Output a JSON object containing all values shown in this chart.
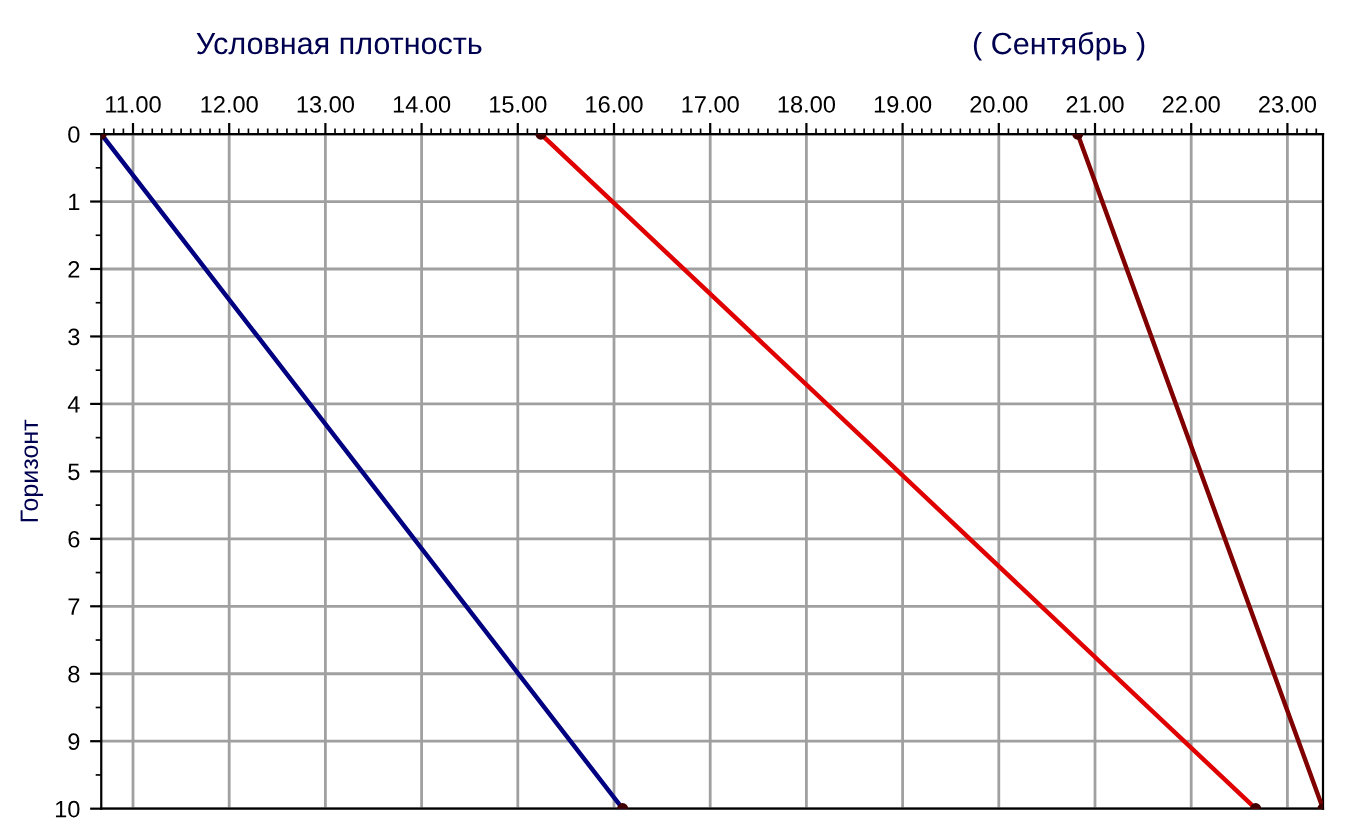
{
  "chart_data": {
    "type": "line",
    "title": "Условная плотность",
    "subtitle": "( Сентябрь )",
    "ylabel": "Горизонт",
    "series": [
      {
        "color": "#000080",
        "x": [
          10.67,
          16.09
        ],
        "values": [
          0,
          10
        ]
      },
      {
        "color": "#e00000",
        "x": [
          15.24,
          22.67
        ],
        "values": [
          0,
          10
        ]
      },
      {
        "color": "#800000",
        "x": [
          20.82,
          23.37
        ],
        "values": [
          0,
          10
        ]
      }
    ],
    "xlim": [
      10.67,
      23.37
    ],
    "xticks": [
      {
        "value": 11,
        "label": "11.00"
      },
      {
        "value": 12,
        "label": "12.00"
      },
      {
        "value": 13,
        "label": "13.00"
      },
      {
        "value": 14,
        "label": "14.00"
      },
      {
        "value": 15,
        "label": "15.00"
      },
      {
        "value": 16,
        "label": "16.00"
      },
      {
        "value": 17,
        "label": "17.00"
      },
      {
        "value": 18,
        "label": "18.00"
      },
      {
        "value": 19,
        "label": "19.00"
      },
      {
        "value": 20,
        "label": "20.00"
      },
      {
        "value": 21,
        "label": "21.00"
      },
      {
        "value": 22,
        "label": "22.00"
      },
      {
        "value": 23,
        "label": "23.00"
      }
    ],
    "ylim": [
      10,
      0
    ],
    "yticks": [
      0,
      1,
      2,
      3,
      4,
      5,
      6,
      7,
      8,
      9,
      10
    ],
    "grid": true,
    "marker": "circle",
    "line_style": "solid",
    "legend": false
  }
}
